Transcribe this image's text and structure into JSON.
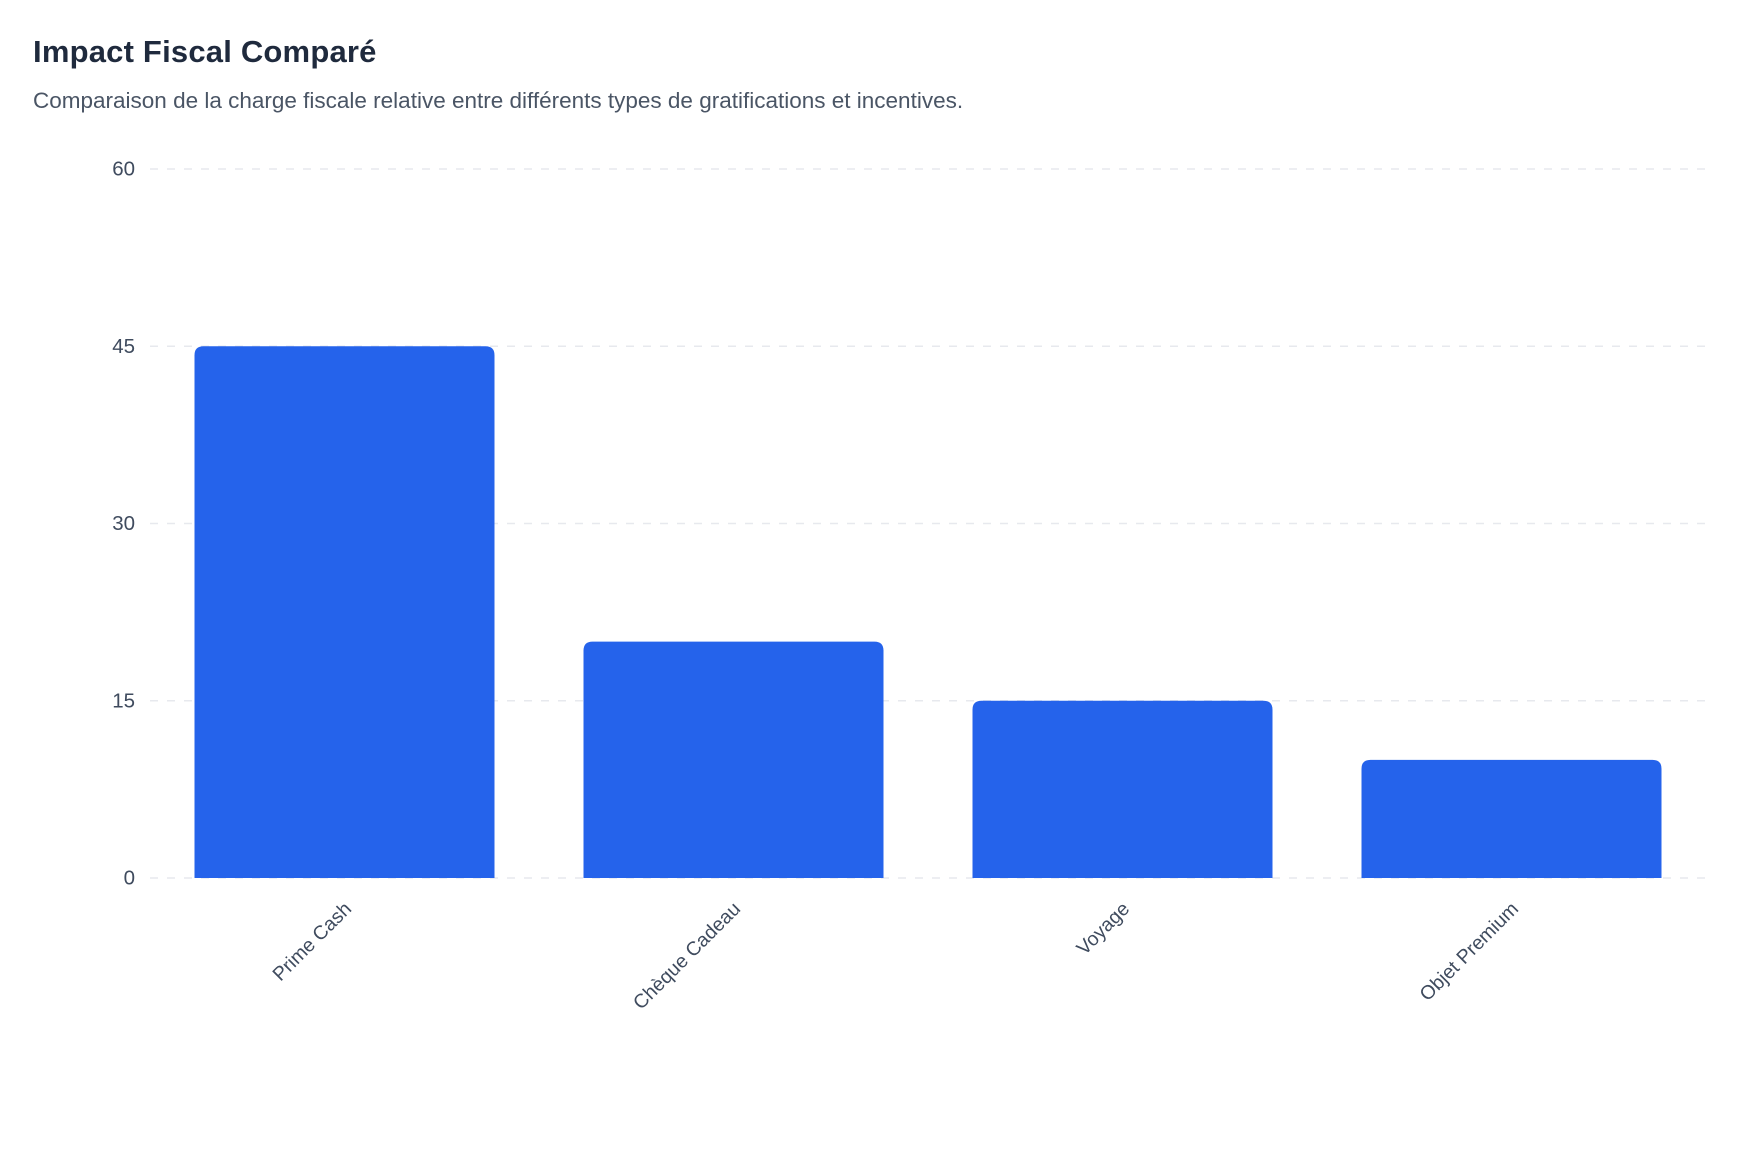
{
  "header": {
    "title": "Impact Fiscal Comparé",
    "subtitle": "Comparaison de la charge fiscale relative entre différents types de gratifications et incentives."
  },
  "colors": {
    "background": "#ffffff",
    "title": "#1f2a3d",
    "subtitle": "#4a5565",
    "tick_label": "#3f4b5e",
    "gridline": "#e7e9ee",
    "bar": "#2563eb"
  },
  "chart_data": {
    "type": "bar",
    "title": "Impact Fiscal Comparé",
    "subtitle": "Comparaison de la charge fiscale relative entre différents types de gratifications et incentives.",
    "categories": [
      "Prime Cash",
      "Chèque Cadeau",
      "Voyage",
      "Objet Premium"
    ],
    "values": [
      45,
      20,
      15,
      10
    ],
    "xlabel": "",
    "ylabel": "",
    "yticks": [
      0,
      15,
      30,
      45,
      60
    ],
    "ylim": [
      0,
      60
    ],
    "grid": "horizontal-dashed",
    "legend": "none",
    "x_tick_rotation": -45,
    "bar_color": "#2563eb"
  }
}
